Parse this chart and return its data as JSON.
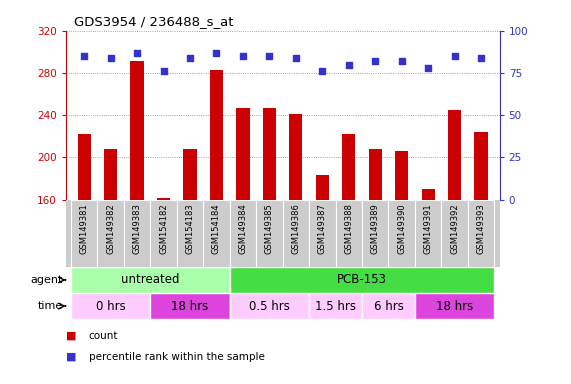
{
  "title": "GDS3954 / 236488_s_at",
  "samples": [
    "GSM149381",
    "GSM149382",
    "GSM149383",
    "GSM154182",
    "GSM154183",
    "GSM154184",
    "GSM149384",
    "GSM149385",
    "GSM149386",
    "GSM149387",
    "GSM149388",
    "GSM149389",
    "GSM149390",
    "GSM149391",
    "GSM149392",
    "GSM149393"
  ],
  "counts": [
    222,
    208,
    291,
    162,
    208,
    283,
    247,
    247,
    241,
    183,
    222,
    208,
    206,
    170,
    245,
    224
  ],
  "percentile_ranks": [
    85,
    84,
    87,
    76,
    84,
    87,
    85,
    85,
    84,
    76,
    80,
    82,
    82,
    78,
    85,
    84
  ],
  "ylim_left": [
    160,
    320
  ],
  "ylim_right": [
    0,
    100
  ],
  "yticks_left": [
    160,
    200,
    240,
    280,
    320
  ],
  "yticks_right": [
    0,
    25,
    50,
    75,
    100
  ],
  "bar_color": "#cc0000",
  "dot_color": "#3333cc",
  "agent_groups": [
    {
      "label": "untreated",
      "start": 0,
      "end": 6,
      "color": "#aaffaa"
    },
    {
      "label": "PCB-153",
      "start": 6,
      "end": 16,
      "color": "#44dd44"
    }
  ],
  "time_groups": [
    {
      "label": "0 hrs",
      "start": 0,
      "end": 3,
      "color": "#ffccff"
    },
    {
      "label": "18 hrs",
      "start": 3,
      "end": 6,
      "color": "#dd44dd"
    },
    {
      "label": "0.5 hrs",
      "start": 6,
      "end": 9,
      "color": "#ffccff"
    },
    {
      "label": "1.5 hrs",
      "start": 9,
      "end": 11,
      "color": "#ffccff"
    },
    {
      "label": "6 hrs",
      "start": 11,
      "end": 13,
      "color": "#ffccff"
    },
    {
      "label": "18 hrs",
      "start": 13,
      "end": 16,
      "color": "#dd44dd"
    }
  ],
  "legend_count_color": "#cc0000",
  "legend_dot_color": "#3333cc",
  "grid_color": "#888888",
  "tick_label_color_left": "#cc0000",
  "tick_label_color_right": "#3333cc",
  "bg_xtick": "#cccccc"
}
